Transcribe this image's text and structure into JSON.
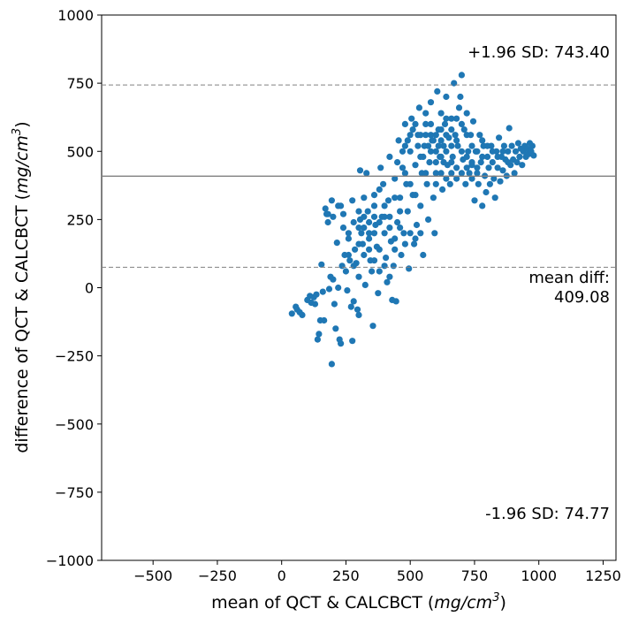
{
  "chart_data": {
    "type": "scatter",
    "xlabel": "mean of QCT & CALCBCT",
    "xlabel_unit_main": "mg/cm",
    "xlabel_unit_exp": "3",
    "ylabel": "difference of QCT & CALCBCT",
    "ylabel_unit_main": "mg/cm",
    "ylabel_unit_exp": "3",
    "xlim": [
      -700,
      1300
    ],
    "ylim": [
      -1000,
      1000
    ],
    "xticks": [
      -500,
      -250,
      0,
      250,
      500,
      750,
      1000,
      1250
    ],
    "xtick_labels": [
      "−500",
      "−250",
      "0",
      "250",
      "500",
      "750",
      "1000",
      "1250"
    ],
    "yticks": [
      -1000,
      -750,
      -500,
      -250,
      0,
      250,
      500,
      750,
      1000
    ],
    "ytick_labels": [
      "−1000",
      "−750",
      "−500",
      "−250",
      "0",
      "250",
      "500",
      "750",
      "1000"
    ],
    "mean_diff": 409.08,
    "upper_loa": 743.4,
    "lower_loa": 74.77,
    "annotations": {
      "upper": "+1.96 SD: 743.40",
      "mean_line1": "mean diff:",
      "mean_line2": "409.08",
      "lower": "-1.96 SD: 74.77"
    },
    "colors": {
      "points": "#1f77b4",
      "mean_line": "#808080",
      "loa_line": "#808080"
    },
    "points": [
      [
        40,
        -95
      ],
      [
        55,
        -70
      ],
      [
        60,
        -80
      ],
      [
        70,
        -90
      ],
      [
        80,
        -100
      ],
      [
        100,
        -45
      ],
      [
        110,
        -30
      ],
      [
        115,
        -55
      ],
      [
        125,
        -35
      ],
      [
        130,
        -60
      ],
      [
        135,
        -25
      ],
      [
        140,
        -190
      ],
      [
        145,
        -170
      ],
      [
        150,
        -120
      ],
      [
        155,
        85
      ],
      [
        160,
        -15
      ],
      [
        165,
        -120
      ],
      [
        170,
        290
      ],
      [
        175,
        270
      ],
      [
        180,
        240
      ],
      [
        185,
        -5
      ],
      [
        190,
        40
      ],
      [
        195,
        -280
      ],
      [
        195,
        320
      ],
      [
        200,
        30
      ],
      [
        205,
        -60
      ],
      [
        210,
        -150
      ],
      [
        215,
        165
      ],
      [
        220,
        0
      ],
      [
        225,
        -190
      ],
      [
        230,
        -205
      ],
      [
        230,
        300
      ],
      [
        235,
        80
      ],
      [
        240,
        270
      ],
      [
        245,
        120
      ],
      [
        250,
        60
      ],
      [
        255,
        -10
      ],
      [
        260,
        180
      ],
      [
        265,
        100
      ],
      [
        270,
        -70
      ],
      [
        275,
        -195
      ],
      [
        275,
        320
      ],
      [
        280,
        -50
      ],
      [
        285,
        140
      ],
      [
        290,
        90
      ],
      [
        295,
        -80
      ],
      [
        300,
        -100
      ],
      [
        300,
        40
      ],
      [
        305,
        250
      ],
      [
        305,
        430
      ],
      [
        310,
        200
      ],
      [
        315,
        160
      ],
      [
        320,
        120
      ],
      [
        325,
        10
      ],
      [
        330,
        420
      ],
      [
        335,
        280
      ],
      [
        340,
        180
      ],
      [
        345,
        100
      ],
      [
        350,
        60
      ],
      [
        355,
        -140
      ],
      [
        360,
        340
      ],
      [
        365,
        230
      ],
      [
        370,
        150
      ],
      [
        375,
        -20
      ],
      [
        380,
        60
      ],
      [
        385,
        440
      ],
      [
        390,
        260
      ],
      [
        395,
        380
      ],
      [
        400,
        200
      ],
      [
        405,
        110
      ],
      [
        410,
        20
      ],
      [
        415,
        320
      ],
      [
        420,
        480
      ],
      [
        425,
        170
      ],
      [
        430,
        -45
      ],
      [
        435,
        80
      ],
      [
        440,
        400
      ],
      [
        445,
        -50
      ],
      [
        450,
        240
      ],
      [
        455,
        540
      ],
      [
        460,
        330
      ],
      [
        465,
        120
      ],
      [
        470,
        440
      ],
      [
        475,
        200
      ],
      [
        480,
        600
      ],
      [
        485,
        380
      ],
      [
        490,
        280
      ],
      [
        495,
        70
      ],
      [
        500,
        500
      ],
      [
        505,
        620
      ],
      [
        510,
        340
      ],
      [
        515,
        160
      ],
      [
        520,
        450
      ],
      [
        525,
        230
      ],
      [
        530,
        560
      ],
      [
        535,
        660
      ],
      [
        540,
        300
      ],
      [
        545,
        420
      ],
      [
        550,
        120
      ],
      [
        555,
        520
      ],
      [
        560,
        600
      ],
      [
        565,
        380
      ],
      [
        570,
        250
      ],
      [
        575,
        460
      ],
      [
        580,
        680
      ],
      [
        585,
        540
      ],
      [
        590,
        330
      ],
      [
        595,
        200
      ],
      [
        600,
        420
      ],
      [
        605,
        720
      ],
      [
        610,
        580
      ],
      [
        615,
        480
      ],
      [
        620,
        640
      ],
      [
        625,
        360
      ],
      [
        630,
        520
      ],
      [
        635,
        600
      ],
      [
        640,
        700
      ],
      [
        645,
        450
      ],
      [
        650,
        550
      ],
      [
        655,
        380
      ],
      [
        660,
        620
      ],
      [
        665,
        480
      ],
      [
        670,
        750
      ],
      [
        675,
        560
      ],
      [
        680,
        400
      ],
      [
        685,
        520
      ],
      [
        690,
        660
      ],
      [
        695,
        700
      ],
      [
        700,
        780
      ],
      [
        705,
        470
      ],
      [
        710,
        580
      ],
      [
        715,
        380
      ],
      [
        720,
        640
      ],
      [
        725,
        500
      ],
      [
        730,
        420
      ],
      [
        735,
        560
      ],
      [
        740,
        450
      ],
      [
        745,
        610
      ],
      [
        750,
        320
      ],
      [
        755,
        500
      ],
      [
        760,
        420
      ],
      [
        765,
        380
      ],
      [
        770,
        560
      ],
      [
        775,
        460
      ],
      [
        780,
        300
      ],
      [
        785,
        520
      ],
      [
        790,
        410
      ],
      [
        795,
        350
      ],
      [
        800,
        480
      ],
      [
        805,
        440
      ],
      [
        810,
        380
      ],
      [
        815,
        520
      ],
      [
        820,
        460
      ],
      [
        825,
        400
      ],
      [
        830,
        330
      ],
      [
        835,
        500
      ],
      [
        840,
        440
      ],
      [
        845,
        550
      ],
      [
        850,
        390
      ],
      [
        855,
        480
      ],
      [
        860,
        430
      ],
      [
        865,
        520
      ],
      [
        870,
        470
      ],
      [
        875,
        410
      ],
      [
        880,
        500
      ],
      [
        885,
        585
      ],
      [
        890,
        450
      ],
      [
        895,
        520
      ],
      [
        900,
        470
      ],
      [
        905,
        420
      ],
      [
        910,
        500
      ],
      [
        915,
        460
      ],
      [
        920,
        530
      ],
      [
        925,
        480
      ],
      [
        930,
        510
      ],
      [
        935,
        450
      ],
      [
        940,
        500
      ],
      [
        945,
        520
      ],
      [
        950,
        480
      ],
      [
        955,
        510
      ],
      [
        960,
        490
      ],
      [
        965,
        530
      ],
      [
        970,
        500
      ],
      [
        975,
        520
      ],
      [
        980,
        485
      ],
      [
        300,
        280
      ],
      [
        320,
        330
      ],
      [
        340,
        240
      ],
      [
        360,
        300
      ],
      [
        380,
        360
      ],
      [
        400,
        300
      ],
      [
        420,
        260
      ],
      [
        440,
        330
      ],
      [
        460,
        280
      ],
      [
        480,
        420
      ],
      [
        500,
        380
      ],
      [
        520,
        340
      ],
      [
        540,
        480
      ],
      [
        560,
        420
      ],
      [
        580,
        500
      ],
      [
        600,
        460
      ],
      [
        620,
        540
      ],
      [
        640,
        500
      ],
      [
        660,
        460
      ],
      [
        680,
        540
      ],
      [
        560,
        560
      ],
      [
        580,
        600
      ],
      [
        600,
        560
      ],
      [
        620,
        580
      ],
      [
        640,
        620
      ],
      [
        660,
        580
      ],
      [
        680,
        620
      ],
      [
        700,
        600
      ],
      [
        720,
        560
      ],
      [
        740,
        520
      ],
      [
        480,
        520
      ],
      [
        500,
        560
      ],
      [
        520,
        600
      ],
      [
        540,
        560
      ],
      [
        560,
        640
      ],
      [
        580,
        560
      ],
      [
        600,
        500
      ],
      [
        620,
        480
      ],
      [
        640,
        560
      ],
      [
        660,
        520
      ],
      [
        360,
        200
      ],
      [
        380,
        240
      ],
      [
        400,
        260
      ],
      [
        420,
        220
      ],
      [
        440,
        180
      ],
      [
        460,
        220
      ],
      [
        480,
        160
      ],
      [
        500,
        200
      ],
      [
        520,
        180
      ],
      [
        540,
        200
      ],
      [
        260,
        120
      ],
      [
        280,
        80
      ],
      [
        300,
        160
      ],
      [
        320,
        220
      ],
      [
        340,
        140
      ],
      [
        360,
        100
      ],
      [
        380,
        140
      ],
      [
        400,
        80
      ],
      [
        420,
        40
      ],
      [
        440,
        140
      ],
      [
        700,
        500
      ],
      [
        720,
        480
      ],
      [
        740,
        460
      ],
      [
        760,
        500
      ],
      [
        780,
        540
      ],
      [
        800,
        520
      ],
      [
        820,
        500
      ],
      [
        840,
        480
      ],
      [
        860,
        500
      ],
      [
        880,
        460
      ],
      [
        600,
        380
      ],
      [
        620,
        420
      ],
      [
        640,
        400
      ],
      [
        660,
        420
      ],
      [
        680,
        440
      ],
      [
        700,
        420
      ],
      [
        720,
        440
      ],
      [
        740,
        400
      ],
      [
        760,
        440
      ],
      [
        780,
        480
      ],
      [
        450,
        460
      ],
      [
        470,
        500
      ],
      [
        490,
        540
      ],
      [
        510,
        580
      ],
      [
        530,
        520
      ],
      [
        550,
        480
      ],
      [
        570,
        520
      ],
      [
        590,
        540
      ],
      [
        610,
        520
      ],
      [
        630,
        460
      ],
      [
        180,
        270
      ],
      [
        200,
        260
      ],
      [
        220,
        300
      ],
      [
        240,
        220
      ],
      [
        260,
        200
      ],
      [
        280,
        240
      ],
      [
        300,
        220
      ],
      [
        320,
        260
      ],
      [
        340,
        200
      ],
      [
        360,
        260
      ]
    ]
  }
}
